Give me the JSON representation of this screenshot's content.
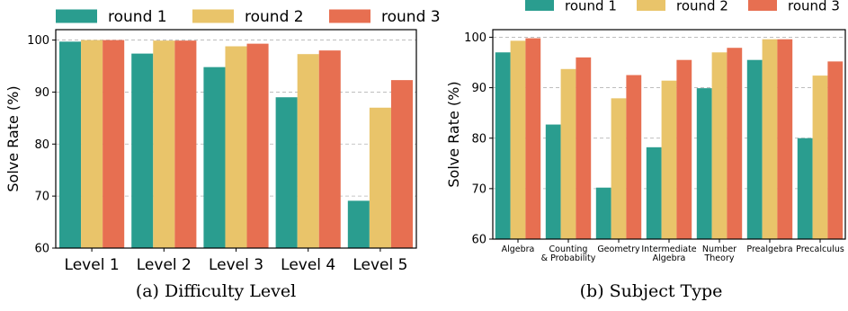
{
  "colors": {
    "round1": "#2a9d8f",
    "round2": "#e9c46a",
    "round3": "#e76f51",
    "grid": "#b5b5b5",
    "axis": "#000000"
  },
  "chart_data": [
    {
      "type": "bar",
      "title": "",
      "caption": "(a) Difficulty Level",
      "xlabel": "",
      "ylabel": "Solve Rate (%)",
      "ylim": [
        60,
        102
      ],
      "yticks": [
        "60",
        "70",
        "80",
        "90",
        "100"
      ],
      "grid": "horizontal dashed",
      "legend_position": "top",
      "categories": [
        "Level 1",
        "Level 2",
        "Level 3",
        "Level 4",
        "Level 5"
      ],
      "series": [
        {
          "name": "round 1",
          "values": [
            99.7,
            97.4,
            94.8,
            89.0,
            69.1
          ]
        },
        {
          "name": "round 2",
          "values": [
            100.0,
            99.9,
            98.8,
            97.3,
            87.0
          ]
        },
        {
          "name": "round 3",
          "values": [
            100.0,
            99.9,
            99.3,
            98.0,
            92.3
          ]
        }
      ]
    },
    {
      "type": "bar",
      "title": "",
      "caption": "(b) Subject Type",
      "xlabel": "",
      "ylabel": "Solve Rate (%)",
      "ylim": [
        60,
        101.5
      ],
      "yticks": [
        "60",
        "70",
        "80",
        "90",
        "100"
      ],
      "grid": "horizontal dashed",
      "legend_position": "top",
      "categories": [
        "Algebra",
        "Counting\n& Probability",
        "Geometry",
        "Intermediate\nAlgebra",
        "Number\nTheory",
        "Prealgebra",
        "Precalculus"
      ],
      "series": [
        {
          "name": "round 1",
          "values": [
            97.0,
            82.7,
            70.2,
            78.2,
            89.9,
            95.5,
            80.0
          ]
        },
        {
          "name": "round 2",
          "values": [
            99.3,
            93.7,
            87.9,
            91.4,
            97.0,
            99.6,
            92.4
          ]
        },
        {
          "name": "round 3",
          "values": [
            99.8,
            96.0,
            92.5,
            95.5,
            97.9,
            99.6,
            95.2
          ]
        }
      ]
    }
  ]
}
